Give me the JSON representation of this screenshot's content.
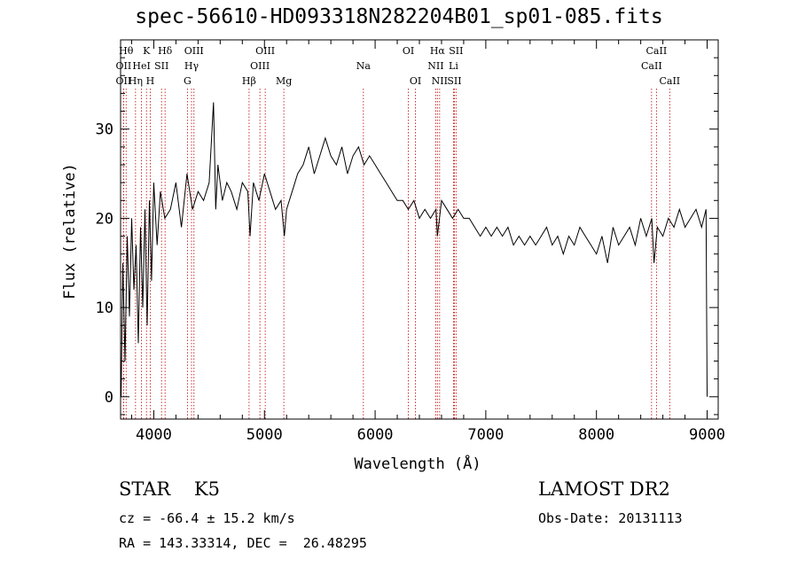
{
  "chart_data": {
    "type": "line",
    "title": "spec-56610-HD093318N282204B01_sp01-085.fits",
    "xlabel": "Wavelength (Å)",
    "ylabel": "Flux (relative)",
    "xlim": [
      3700,
      9100
    ],
    "ylim": [
      -2.5,
      40
    ],
    "xticks": [
      4000,
      5000,
      6000,
      7000,
      8000,
      9000
    ],
    "yticks": [
      0,
      10,
      20,
      30
    ],
    "grid": false,
    "series": [
      {
        "color": "#000000",
        "x": [
          3705,
          3720,
          3740,
          3760,
          3780,
          3800,
          3820,
          3840,
          3860,
          3880,
          3900,
          3920,
          3940,
          3960,
          3980,
          4000,
          4030,
          4060,
          4100,
          4150,
          4200,
          4250,
          4300,
          4350,
          4400,
          4450,
          4500,
          4540,
          4560,
          4580,
          4620,
          4660,
          4700,
          4750,
          4800,
          4850,
          4870,
          4900,
          4950,
          5000,
          5050,
          5100,
          5150,
          5180,
          5200,
          5250,
          5300,
          5350,
          5400,
          5450,
          5500,
          5550,
          5600,
          5650,
          5700,
          5750,
          5800,
          5850,
          5900,
          5950,
          6000,
          6050,
          6100,
          6150,
          6200,
          6250,
          6300,
          6350,
          6400,
          6450,
          6500,
          6550,
          6563,
          6600,
          6650,
          6700,
          6750,
          6800,
          6850,
          6900,
          6950,
          7000,
          7050,
          7100,
          7150,
          7200,
          7250,
          7300,
          7350,
          7400,
          7450,
          7500,
          7550,
          7600,
          7650,
          7700,
          7750,
          7800,
          7850,
          7900,
          7950,
          8000,
          8050,
          8100,
          8150,
          8200,
          8250,
          8300,
          8350,
          8400,
          8450,
          8500,
          8520,
          8550,
          8600,
          8650,
          8700,
          8750,
          8800,
          8850,
          8900,
          8950,
          8990,
          9000
        ],
        "values": [
          0,
          15,
          4,
          18,
          9,
          20,
          12,
          17,
          6,
          19,
          10,
          21,
          8,
          22,
          13,
          24,
          17,
          23,
          20,
          21,
          24,
          19,
          25,
          21,
          23,
          22,
          24,
          33,
          21,
          26,
          22,
          24,
          23,
          21,
          24,
          23,
          18,
          24,
          22,
          25,
          23,
          21,
          22,
          18,
          21,
          23,
          25,
          26,
          28,
          25,
          27,
          29,
          27,
          26,
          28,
          25,
          27,
          28,
          26,
          27,
          26,
          25,
          24,
          23,
          22,
          22,
          21,
          22,
          20,
          21,
          20,
          21,
          18,
          22,
          21,
          20,
          21,
          20,
          20,
          19,
          18,
          19,
          18,
          19,
          18,
          19,
          17,
          18,
          17,
          18,
          17,
          18,
          19,
          17,
          18,
          16,
          18,
          17,
          19,
          18,
          17,
          16,
          18,
          15,
          19,
          17,
          18,
          19,
          17,
          20,
          18,
          20,
          15,
          19,
          18,
          20,
          19,
          21,
          19,
          20,
          21,
          19,
          21,
          0
        ]
      }
    ],
    "lines": [
      {
        "label": "OII",
        "x": 3727,
        "row": 2
      },
      {
        "label": "Hθ",
        "x": 3750,
        "row": 1
      },
      {
        "label": "OII",
        "x": 3727,
        "row": 3
      },
      {
        "label": "Hη",
        "x": 3835,
        "row": 3
      },
      {
        "label": "HeI",
        "x": 3889,
        "row": 2
      },
      {
        "label": "K",
        "x": 3934,
        "row": 1
      },
      {
        "label": "H",
        "x": 3968,
        "row": 3
      },
      {
        "label": "SII",
        "x": 4070,
        "row": 2
      },
      {
        "label": "Hδ",
        "x": 4102,
        "row": 1
      },
      {
        "label": "G",
        "x": 4304,
        "row": 3
      },
      {
        "label": "Hγ",
        "x": 4341,
        "row": 2
      },
      {
        "label": "OIII",
        "x": 4363,
        "row": 1
      },
      {
        "label": "Hβ",
        "x": 4861,
        "row": 3
      },
      {
        "label": "OIII",
        "x": 4959,
        "row": 2
      },
      {
        "label": "OIII",
        "x": 5007,
        "row": 1
      },
      {
        "label": "Mg",
        "x": 5175,
        "row": 3
      },
      {
        "label": "Na",
        "x": 5894,
        "row": 2
      },
      {
        "label": "OI",
        "x": 6300,
        "row": 1
      },
      {
        "label": "OI",
        "x": 6364,
        "row": 3
      },
      {
        "label": "NII",
        "x": 6548,
        "row": 2
      },
      {
        "label": "Hα",
        "x": 6563,
        "row": 1
      },
      {
        "label": "NII",
        "x": 6583,
        "row": 3
      },
      {
        "label": "SII",
        "x": 6716,
        "row": 3
      },
      {
        "label": "Li",
        "x": 6708,
        "row": 2
      },
      {
        "label": "SII",
        "x": 6731,
        "row": 1
      },
      {
        "label": "CaII",
        "x": 8498,
        "row": 2
      },
      {
        "label": "CaII",
        "x": 8542,
        "row": 1
      },
      {
        "label": "CaII",
        "x": 8662,
        "row": 3
      }
    ]
  },
  "info": {
    "class_line": "STAR    K5",
    "cz_line": "cz = -66.4 ± 15.2 km/s",
    "radec_line": "RA = 143.33314, DEC =  26.48295",
    "survey": "LAMOST DR2",
    "obs_line": "Obs-Date: 20131113"
  }
}
